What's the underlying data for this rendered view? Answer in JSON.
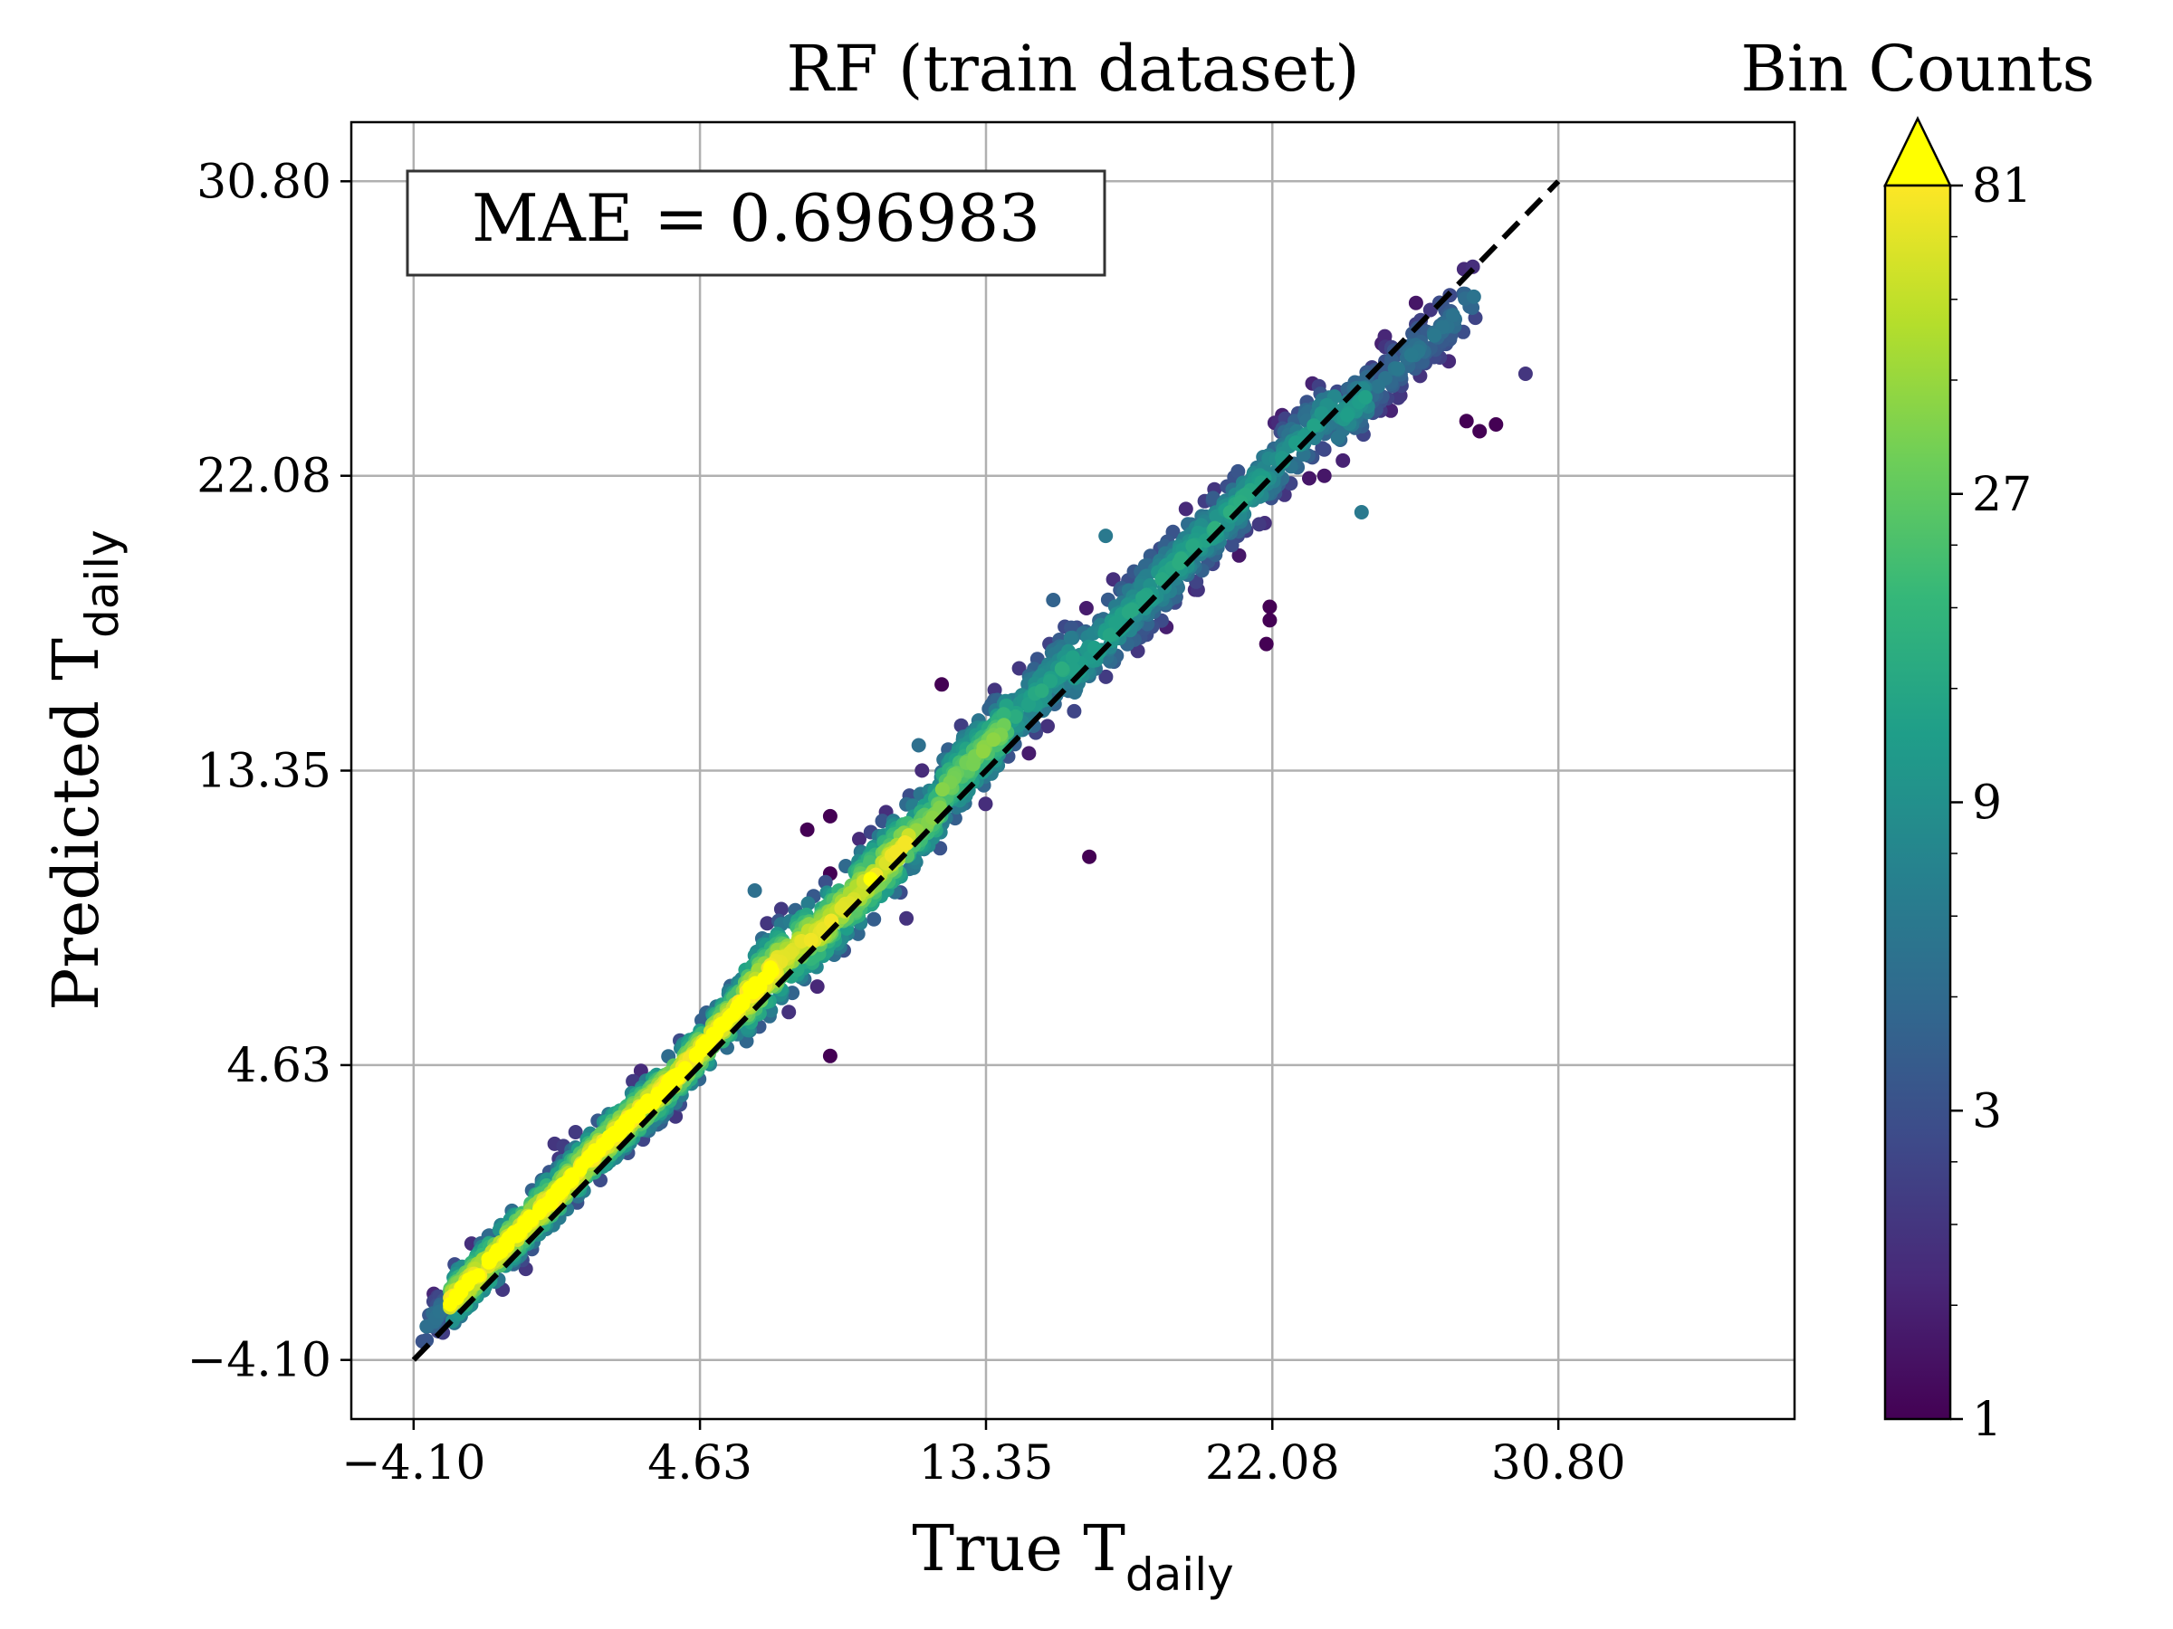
{
  "chart_data": {
    "type": "scatter",
    "title": "RF (train dataset)",
    "xlabel": {
      "main": "True T",
      "sub": "daily"
    },
    "ylabel": {
      "main": "Predicted T",
      "sub": "daily"
    },
    "xlim": [
      -6.0,
      38.0
    ],
    "ylim": [
      -5.85,
      32.55
    ],
    "xticks": [
      -4.1,
      4.63,
      13.35,
      22.08,
      30.8
    ],
    "yticks": [
      -4.1,
      4.63,
      13.35,
      22.08,
      30.8
    ],
    "xtick_labels": [
      "−4.10",
      "4.63",
      "13.35",
      "22.08",
      "30.80"
    ],
    "ytick_labels": [
      "−4.10",
      "4.63",
      "13.35",
      "22.08",
      "30.80"
    ],
    "grid": true,
    "annotation": "MAE = 0.696983",
    "reference_line": {
      "from": [
        -4.1,
        -4.1
      ],
      "to": [
        30.8,
        30.8
      ],
      "style": "dashed",
      "color": "#000000"
    },
    "colorbar": {
      "title": "Bin Counts",
      "scale": "log",
      "range": [
        1,
        81
      ],
      "ticks": [
        1,
        3,
        9,
        27,
        81
      ],
      "tick_labels": [
        "1",
        "3",
        "9",
        "27",
        "81"
      ],
      "extend": "max",
      "colormap": "viridis",
      "colors": [
        "#440154",
        "#482878",
        "#3e4989",
        "#31688e",
        "#26828e",
        "#1f9e89",
        "#35b779",
        "#6ece58",
        "#b5de2b",
        "#fde725"
      ],
      "over_color": "#ffff00"
    },
    "outliers": [
      {
        "x": 0.2,
        "y": 2.3,
        "count": 2
      },
      {
        "x": 7.9,
        "y": 11.6,
        "count": 1
      },
      {
        "x": 8.6,
        "y": 12.0,
        "count": 1
      },
      {
        "x": 8.6,
        "y": 10.3,
        "count": 1
      },
      {
        "x": 8.6,
        "y": 4.9,
        "count": 1
      },
      {
        "x": 12.0,
        "y": 15.9,
        "count": 1
      },
      {
        "x": 16.5,
        "y": 10.8,
        "count": 1
      },
      {
        "x": 21.9,
        "y": 17.1,
        "count": 1
      },
      {
        "x": 22.0,
        "y": 17.8,
        "count": 1
      },
      {
        "x": 22.0,
        "y": 18.2,
        "count": 1
      },
      {
        "x": 28.4,
        "y": 23.4,
        "count": 1
      },
      {
        "x": 28.9,
        "y": 23.6,
        "count": 1
      },
      {
        "x": 28.0,
        "y": 23.7,
        "count": 1
      },
      {
        "x": 29.8,
        "y": 25.1,
        "count": 2
      },
      {
        "x": 15.4,
        "y": 18.4,
        "count": 4
      },
      {
        "x": 11.3,
        "y": 14.1,
        "count": 5
      },
      {
        "x": 6.3,
        "y": 9.8,
        "count": 5
      },
      {
        "x": 2.0,
        "y": 2.9,
        "count": 6
      },
      {
        "x": 3.3,
        "y": 3.5,
        "count": 5
      },
      {
        "x": 17.0,
        "y": 20.3,
        "count": 6
      },
      {
        "x": 24.8,
        "y": 21.0,
        "count": 6
      }
    ]
  }
}
